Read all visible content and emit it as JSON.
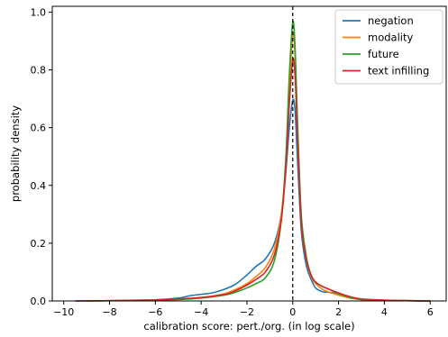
{
  "chart_data": {
    "type": "line",
    "xlabel": "calibration score: pert./org. (in log scale)",
    "ylabel": "probability density",
    "xlim": [
      -10.5,
      6.7
    ],
    "ylim": [
      0.0,
      1.02
    ],
    "xticks": [
      -10,
      -8,
      -6,
      -4,
      -2,
      0,
      2,
      4,
      6
    ],
    "yticks": [
      0.0,
      0.2,
      0.4,
      0.6,
      0.8,
      1.0
    ],
    "xtick_labels": [
      "−10",
      "−8",
      "−6",
      "−4",
      "−2",
      "0",
      "2",
      "4",
      "6"
    ],
    "ytick_labels": [
      "0.0",
      "0.2",
      "0.4",
      "0.6",
      "0.8",
      "1.0"
    ],
    "reference_line": {
      "x": 0,
      "style": "dashed",
      "color": "#000000"
    },
    "legend_position": "top-right",
    "grid": false,
    "series": [
      {
        "name": "negation",
        "color": "#1f77b4",
        "points": [
          [
            -9.5,
            0.0
          ],
          [
            -8,
            0.001
          ],
          [
            -6,
            0.004
          ],
          [
            -5,
            0.01
          ],
          [
            -4.5,
            0.018
          ],
          [
            -4,
            0.023
          ],
          [
            -3.5,
            0.028
          ],
          [
            -3,
            0.04
          ],
          [
            -2.5,
            0.058
          ],
          [
            -2,
            0.09
          ],
          [
            -1.6,
            0.12
          ],
          [
            -1.2,
            0.145
          ],
          [
            -0.8,
            0.2
          ],
          [
            -0.5,
            0.3
          ],
          [
            -0.3,
            0.45
          ],
          [
            -0.15,
            0.6
          ],
          [
            0,
            0.695
          ],
          [
            0.1,
            0.66
          ],
          [
            0.2,
            0.5
          ],
          [
            0.3,
            0.34
          ],
          [
            0.4,
            0.22
          ],
          [
            0.6,
            0.12
          ],
          [
            0.8,
            0.075
          ],
          [
            1.0,
            0.045
          ],
          [
            1.3,
            0.032
          ],
          [
            1.6,
            0.03
          ],
          [
            2,
            0.025
          ],
          [
            2.5,
            0.012
          ],
          [
            3,
            0.005
          ],
          [
            4,
            0.002
          ],
          [
            5,
            0.001
          ],
          [
            6,
            0.0
          ]
        ]
      },
      {
        "name": "modality",
        "color": "#ff7f0e",
        "points": [
          [
            -9,
            0.0
          ],
          [
            -7,
            0.002
          ],
          [
            -5,
            0.006
          ],
          [
            -4,
            0.012
          ],
          [
            -3,
            0.025
          ],
          [
            -2.5,
            0.04
          ],
          [
            -2,
            0.06
          ],
          [
            -1.6,
            0.085
          ],
          [
            -1.2,
            0.115
          ],
          [
            -0.8,
            0.18
          ],
          [
            -0.5,
            0.3
          ],
          [
            -0.3,
            0.48
          ],
          [
            -0.15,
            0.72
          ],
          [
            0,
            0.925
          ],
          [
            0.1,
            0.85
          ],
          [
            0.2,
            0.62
          ],
          [
            0.3,
            0.4
          ],
          [
            0.4,
            0.25
          ],
          [
            0.6,
            0.14
          ],
          [
            0.8,
            0.085
          ],
          [
            1.0,
            0.06
          ],
          [
            1.3,
            0.04
          ],
          [
            1.6,
            0.03
          ],
          [
            2,
            0.02
          ],
          [
            2.5,
            0.01
          ],
          [
            3,
            0.006
          ],
          [
            4,
            0.002
          ],
          [
            5,
            0.001
          ],
          [
            6,
            0.0
          ]
        ]
      },
      {
        "name": "future",
        "color": "#2ca02c",
        "points": [
          [
            -9,
            0.0
          ],
          [
            -7,
            0.002
          ],
          [
            -5,
            0.005
          ],
          [
            -4,
            0.01
          ],
          [
            -3,
            0.02
          ],
          [
            -2.5,
            0.03
          ],
          [
            -2,
            0.045
          ],
          [
            -1.6,
            0.06
          ],
          [
            -1.2,
            0.08
          ],
          [
            -0.8,
            0.14
          ],
          [
            -0.5,
            0.28
          ],
          [
            -0.3,
            0.5
          ],
          [
            -0.15,
            0.78
          ],
          [
            0,
            0.965
          ],
          [
            0.1,
            0.88
          ],
          [
            0.2,
            0.64
          ],
          [
            0.3,
            0.42
          ],
          [
            0.4,
            0.27
          ],
          [
            0.6,
            0.15
          ],
          [
            0.8,
            0.09
          ],
          [
            1.0,
            0.065
          ],
          [
            1.3,
            0.05
          ],
          [
            1.6,
            0.04
          ],
          [
            2,
            0.025
          ],
          [
            2.5,
            0.012
          ],
          [
            3,
            0.005
          ],
          [
            4,
            0.002
          ],
          [
            5,
            0.001
          ],
          [
            6,
            0.0
          ]
        ]
      },
      {
        "name": "text infilling",
        "color": "#d62728",
        "points": [
          [
            -9.5,
            0.0
          ],
          [
            -8,
            0.001
          ],
          [
            -6,
            0.003
          ],
          [
            -5,
            0.007
          ],
          [
            -4,
            0.012
          ],
          [
            -3,
            0.022
          ],
          [
            -2.5,
            0.035
          ],
          [
            -2,
            0.055
          ],
          [
            -1.6,
            0.075
          ],
          [
            -1.2,
            0.1
          ],
          [
            -0.8,
            0.16
          ],
          [
            -0.5,
            0.28
          ],
          [
            -0.3,
            0.46
          ],
          [
            -0.15,
            0.68
          ],
          [
            0,
            0.835
          ],
          [
            0.1,
            0.78
          ],
          [
            0.2,
            0.58
          ],
          [
            0.3,
            0.38
          ],
          [
            0.4,
            0.24
          ],
          [
            0.6,
            0.14
          ],
          [
            0.8,
            0.09
          ],
          [
            1.0,
            0.065
          ],
          [
            1.3,
            0.05
          ],
          [
            1.6,
            0.04
          ],
          [
            2,
            0.028
          ],
          [
            2.5,
            0.015
          ],
          [
            3,
            0.007
          ],
          [
            4,
            0.003
          ],
          [
            5,
            0.001
          ],
          [
            6,
            0.0
          ]
        ]
      }
    ]
  }
}
